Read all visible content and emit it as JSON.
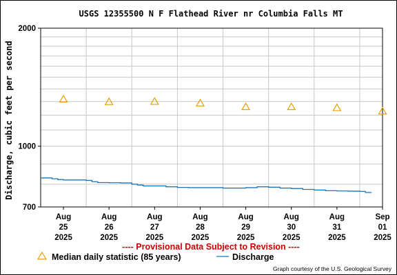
{
  "chart_data": {
    "type": "line",
    "title": "USGS 12355500 N F Flathead River nr Columbia Falls MT",
    "ylabel": "Discharge, cubic feet per second",
    "xlabel": "",
    "y_scale": "log",
    "ylim": [
      700,
      2000
    ],
    "xlim": [
      "2025-08-25 00:00",
      "2025-09-01 12:00"
    ],
    "y_tick_labels": [
      {
        "value": 2000,
        "label": "2000"
      },
      {
        "value": 1000,
        "label": "1000"
      },
      {
        "value": 700,
        "label": "700"
      }
    ],
    "x_tick_labels": [
      {
        "x": "2025-08-25 12:00",
        "lines": [
          "Aug",
          "25",
          "2025"
        ]
      },
      {
        "x": "2025-08-26 12:00",
        "lines": [
          "Aug",
          "26",
          "2025"
        ]
      },
      {
        "x": "2025-08-27 12:00",
        "lines": [
          "Aug",
          "27",
          "2025"
        ]
      },
      {
        "x": "2025-08-28 12:00",
        "lines": [
          "Aug",
          "28",
          "2025"
        ]
      },
      {
        "x": "2025-08-29 12:00",
        "lines": [
          "Aug",
          "29",
          "2025"
        ]
      },
      {
        "x": "2025-08-30 12:00",
        "lines": [
          "Aug",
          "30",
          "2025"
        ]
      },
      {
        "x": "2025-08-31 12:00",
        "lines": [
          "Aug",
          "31",
          "2025"
        ]
      },
      {
        "x": "2025-09-01 12:00",
        "lines": [
          "Sep",
          "01",
          "2025"
        ]
      }
    ],
    "grid": true,
    "series": [
      {
        "name": "Discharge",
        "color": "#1a75ba",
        "style": "line",
        "points": [
          [
            "2025-08-25 00:00",
            830
          ],
          [
            "2025-08-25 03:00",
            830
          ],
          [
            "2025-08-25 06:00",
            826
          ],
          [
            "2025-08-25 09:00",
            822
          ],
          [
            "2025-08-25 12:00",
            820
          ],
          [
            "2025-08-25 18:00",
            820
          ],
          [
            "2025-08-26 00:00",
            818
          ],
          [
            "2025-08-26 03:00",
            812
          ],
          [
            "2025-08-26 06:00",
            808
          ],
          [
            "2025-08-26 12:00",
            807
          ],
          [
            "2025-08-26 18:00",
            806
          ],
          [
            "2025-08-27 00:00",
            800
          ],
          [
            "2025-08-27 03:00",
            796
          ],
          [
            "2025-08-27 06:00",
            792
          ],
          [
            "2025-08-27 12:00",
            792
          ],
          [
            "2025-08-27 18:00",
            788
          ],
          [
            "2025-08-28 00:00",
            785
          ],
          [
            "2025-08-28 06:00",
            784
          ],
          [
            "2025-08-28 12:00",
            784
          ],
          [
            "2025-08-28 18:00",
            784
          ],
          [
            "2025-08-29 00:00",
            782
          ],
          [
            "2025-08-29 06:00",
            782
          ],
          [
            "2025-08-29 12:00",
            784
          ],
          [
            "2025-08-29 18:00",
            788
          ],
          [
            "2025-08-30 00:00",
            786
          ],
          [
            "2025-08-30 06:00",
            782
          ],
          [
            "2025-08-30 12:00",
            780
          ],
          [
            "2025-08-30 18:00",
            776
          ],
          [
            "2025-08-31 00:00",
            773
          ],
          [
            "2025-08-31 06:00",
            770
          ],
          [
            "2025-08-31 12:00",
            769
          ],
          [
            "2025-08-31 18:00",
            768
          ],
          [
            "2025-09-01 00:00",
            767
          ],
          [
            "2025-09-01 03:00",
            762
          ],
          [
            "2025-09-01 06:00",
            764
          ]
        ]
      },
      {
        "name": "Median daily statistic (85 years)",
        "color": "#e8a000",
        "style": "triangle",
        "points": [
          [
            "2025-08-25 12:00",
            1320
          ],
          [
            "2025-08-26 12:00",
            1300
          ],
          [
            "2025-08-27 12:00",
            1302
          ],
          [
            "2025-08-28 12:00",
            1290
          ],
          [
            "2025-08-29 12:00",
            1262
          ],
          [
            "2025-08-30 12:00",
            1262
          ],
          [
            "2025-08-31 12:00",
            1255
          ],
          [
            "2025-09-01 12:00",
            1230
          ]
        ]
      }
    ]
  },
  "notice": "---- Provisional Data Subject to Revision ----",
  "notice_color": "#cc0000",
  "legend": {
    "median_label": "Median daily statistic (85 years)",
    "discharge_label": "Discharge"
  },
  "credit": "Graph courtesy of the U.S. Geological Survey"
}
